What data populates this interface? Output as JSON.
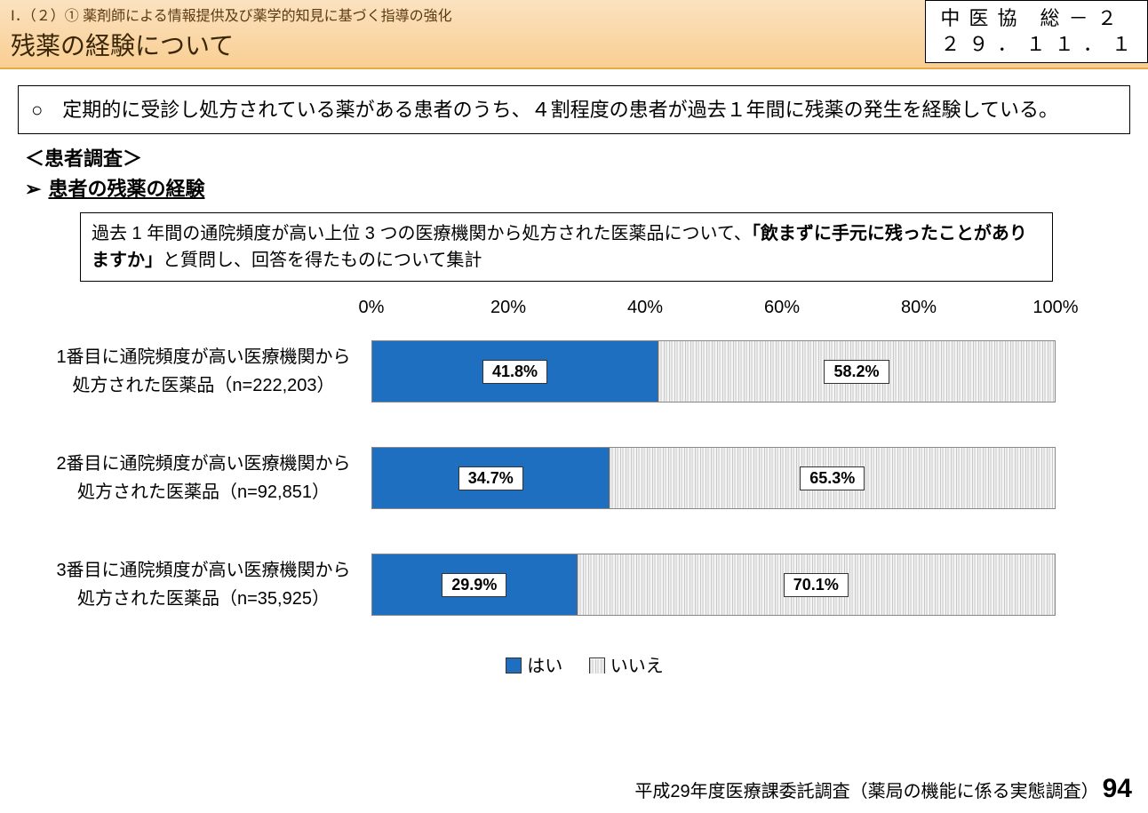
{
  "header": {
    "breadcrumb": "Ⅰ．（２）① 薬剤師による情報提供及び薬学的知見に基づく指導の強化",
    "title": "残薬の経験について",
    "doc_id_line1": "中 医 協　総 － ２",
    "doc_id_line2": "２ ９ ． １ １ ． １"
  },
  "summary": "○　定期的に受診し処方されている薬がある患者のうち、４割程度の患者が過去１年間に残薬の発生を経験している。",
  "section": {
    "label": "＜患者調査＞",
    "arrow": "➢",
    "subtitle": "患者の残薬の経験"
  },
  "question": {
    "pre": "過去 1 年間の通院頻度が高い上位 3 つの医療機関から処方された医薬品について、",
    "bold": "「飲まずに手元に残ったことがありますか」",
    "post": "と質問し、回答を得たものについて集計"
  },
  "chart": {
    "type": "stacked-bar-horizontal",
    "x_ticks": [
      "0%",
      "20%",
      "40%",
      "60%",
      "80%",
      "100%"
    ],
    "x_tick_positions_pct": [
      0,
      20,
      40,
      60,
      80,
      100
    ],
    "colors": {
      "yes": "#1F6FC0",
      "no_pattern": "hatch",
      "grid": "#b8b8b8",
      "value_box_bg": "#ffffff"
    },
    "legend": {
      "yes": "はい",
      "no": "いいえ"
    },
    "rows": [
      {
        "label_l1": "1番目に通院頻度が高い医療機関から",
        "label_l2": "処方された医薬品（n=222,203）",
        "yes_pct": 41.8,
        "no_pct": 58.2,
        "yes_label": "41.8%",
        "no_label": "58.2%"
      },
      {
        "label_l1": "2番目に通院頻度が高い医療機関から",
        "label_l2": "処方された医薬品（n=92,851）",
        "yes_pct": 34.7,
        "no_pct": 65.3,
        "yes_label": "34.7%",
        "no_label": "65.3%"
      },
      {
        "label_l1": "3番目に通院頻度が高い医療機関から",
        "label_l2": "処方された医薬品（n=35,925）",
        "yes_pct": 29.9,
        "no_pct": 70.1,
        "yes_label": "29.9%",
        "no_label": "70.1%"
      }
    ]
  },
  "source": {
    "text": "平成29年度医療課委託調査（薬局の機能に係る実態調査）",
    "page": "94"
  }
}
